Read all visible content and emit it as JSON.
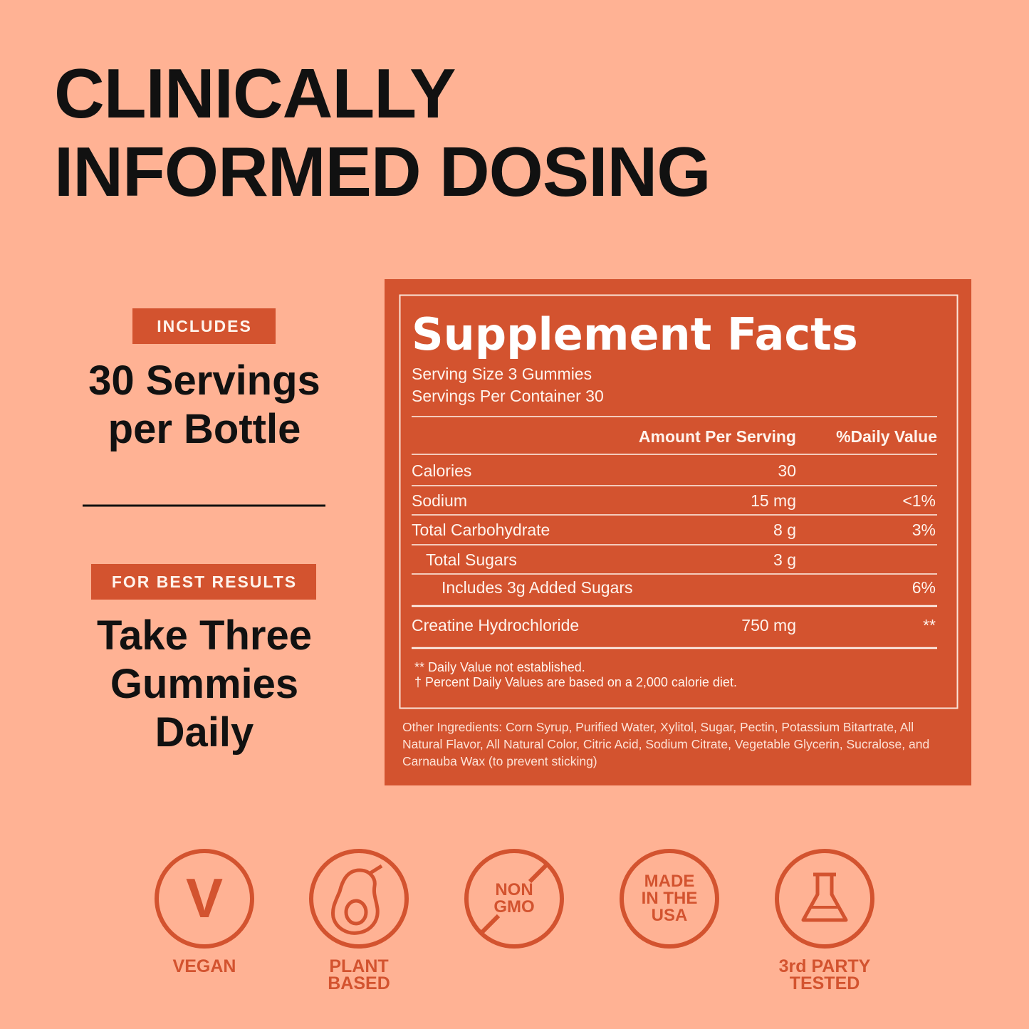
{
  "header": {
    "title_lines": [
      "CLINICALLY",
      "INFORMED DOSING"
    ]
  },
  "servings": {
    "badge": "INCLUDES",
    "lines": [
      "30 Servings",
      "per Bottle"
    ]
  },
  "usage": {
    "badge": "FOR BEST RESULTS",
    "lines": [
      "Take Three",
      "Gummies",
      "Daily"
    ]
  },
  "facts": {
    "title": "Supplement Facts",
    "serving_size": "Serving Size 3 Gummies",
    "servings_per_container": "Servings Per Container 30",
    "columns": [
      "Amount Per Serving",
      "%Daily Value"
    ],
    "rows": [
      {
        "name": "Calories",
        "amount": "30"
      },
      {
        "name": "Sodium",
        "amount": "15 mg",
        "daily_value": "<1%"
      },
      {
        "name": "Total Carbohydrate",
        "amount": "8 g",
        "daily_value": "3%"
      },
      {
        "name": "Total Sugars",
        "amount": "3 g"
      },
      {
        "name": "Includes 3g Added Sugars",
        "daily_value": "6%"
      },
      {
        "name": "Creatine Hydrochloride",
        "amount": "750 mg",
        "daily_value": "**"
      }
    ],
    "footnotes": [
      "**  Daily Value not established.",
      "† Percent Daily Values are based on a 2,000 calorie diet."
    ],
    "other_ingredients": "Other Ingredients: Corn Syrup, Purified Water, Xylitol, Sugar, Pectin, Potassium Bitartrate, All Natural Flavor, All Natural Color, Citric Acid, Sodium Citrate, Vegetable Glycerin, Sucralose, and Carnauba Wax (to prevent sticking)"
  },
  "badges": [
    {
      "icon_text": "V",
      "label_lines": [
        "VEGAN"
      ]
    },
    {
      "label_lines": [
        "PLANT",
        "BASED"
      ]
    },
    {
      "icon_text_lines": [
        "NON",
        "GMO"
      ]
    },
    {
      "icon_text_lines": [
        "MADE",
        "IN THE",
        "USA"
      ]
    },
    {
      "label_lines": [
        "3rd PARTY",
        "TESTED"
      ]
    }
  ]
}
